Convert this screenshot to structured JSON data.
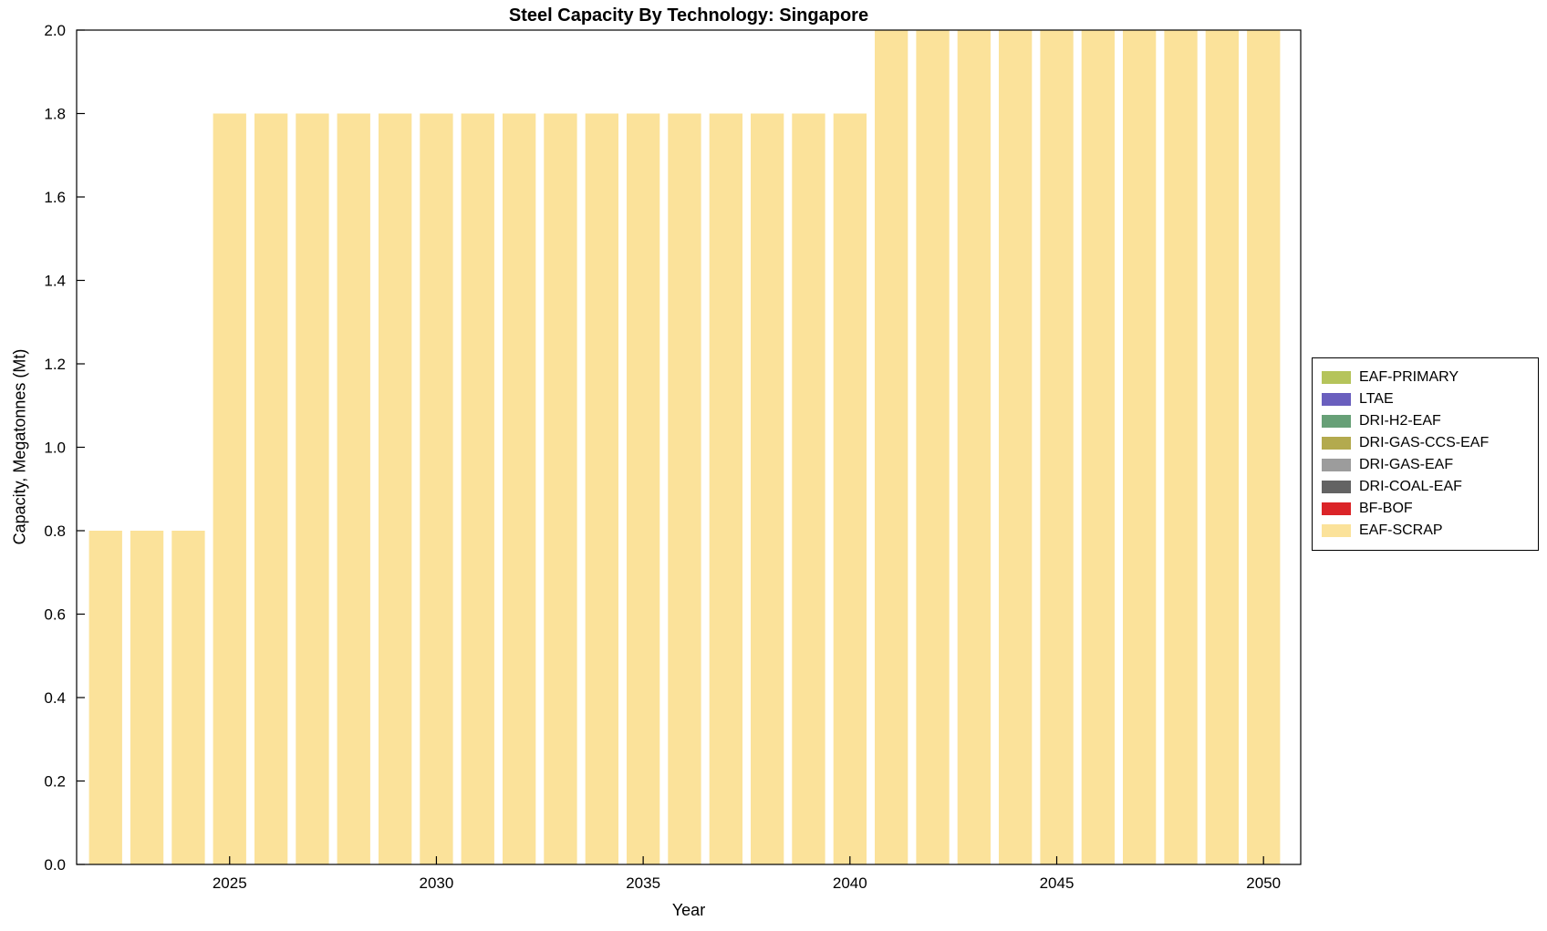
{
  "chart_data": {
    "type": "bar",
    "title": "Steel Capacity By Technology: Singapore",
    "xlabel": "Year",
    "ylabel": "Capacity, Megatonnes (Mt)",
    "x": [
      2022,
      2023,
      2024,
      2025,
      2026,
      2027,
      2028,
      2029,
      2030,
      2031,
      2032,
      2033,
      2034,
      2035,
      2036,
      2037,
      2038,
      2039,
      2040,
      2041,
      2042,
      2043,
      2044,
      2045,
      2046,
      2047,
      2048,
      2049,
      2050
    ],
    "values": [
      0.8,
      0.8,
      0.8,
      1.8,
      1.8,
      1.8,
      1.8,
      1.8,
      1.8,
      1.8,
      1.8,
      1.8,
      1.8,
      1.8,
      1.8,
      1.8,
      1.8,
      1.8,
      1.8,
      2.0,
      2.0,
      2.0,
      2.0,
      2.0,
      2.0,
      2.0,
      2.0,
      2.0,
      2.0
    ],
    "series_name": "EAF-SCRAP",
    "xlim": [
      2021.3,
      2050.9
    ],
    "ylim": [
      0.0,
      2.0
    ],
    "bar_width": 0.8,
    "bar_color": "#FBE29A",
    "grid": false,
    "xticks": [
      2025,
      2030,
      2035,
      2040,
      2045,
      2050
    ],
    "xtick_labels": [
      "2025",
      "2030",
      "2035",
      "2040",
      "2045",
      "2050"
    ],
    "yticks": [
      0.0,
      0.2,
      0.4,
      0.6,
      0.8,
      1.0,
      1.2,
      1.4,
      1.6,
      1.8,
      2.0
    ],
    "ytick_labels": [
      "0.0",
      "0.2",
      "0.4",
      "0.6",
      "0.8",
      "1.0",
      "1.2",
      "1.4",
      "1.6",
      "1.8",
      "2.0"
    ],
    "legend_position": "right-outside",
    "legend": [
      {
        "label": "EAF-PRIMARY",
        "color": "#B5C45B"
      },
      {
        "label": "LTAE",
        "color": "#6A5FBE"
      },
      {
        "label": "DRI-H2-EAF",
        "color": "#67A077"
      },
      {
        "label": "DRI-GAS-CCS-EAF",
        "color": "#B3AA4E"
      },
      {
        "label": "DRI-GAS-EAF",
        "color": "#9C9C9C"
      },
      {
        "label": "DRI-COAL-EAF",
        "color": "#636363"
      },
      {
        "label": "BF-BOF",
        "color": "#DB2428"
      },
      {
        "label": "EAF-SCRAP",
        "color": "#FBE29A"
      }
    ]
  }
}
